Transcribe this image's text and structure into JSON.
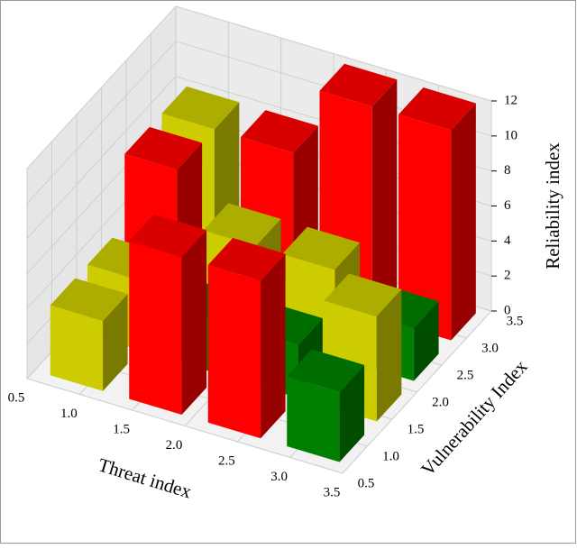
{
  "chart_data": {
    "type": "bar3d",
    "xlabel": "Threat index",
    "ylabel": "Vulnerability Index",
    "zlabel": "Reliability index",
    "xlim": [
      0.5,
      3.5
    ],
    "ylim": [
      0.5,
      3.5
    ],
    "zlim": [
      0,
      12
    ],
    "xticks": [
      0.5,
      {
        "value": 1,
        "label": "1.0"
      },
      1.5,
      {
        "value": 2,
        "label": "2.0"
      },
      2.5,
      {
        "value": 3,
        "label": "3.0"
      },
      3.5
    ],
    "yticks": [
      0.5,
      {
        "value": 1,
        "label": "1.0"
      },
      1.5,
      {
        "value": 2,
        "label": "2.0"
      },
      2.5,
      {
        "value": 3,
        "label": "3.0"
      },
      3.5
    ],
    "zticks": [
      0,
      2,
      4,
      6,
      8,
      10,
      12
    ],
    "grid": true,
    "bar_width": 0.5,
    "bars": {
      "x": [
        0.9,
        1.65,
        2.4,
        3.15,
        0.9,
        1.65,
        2.4,
        3.15,
        0.9,
        1.65,
        2.4,
        3.15,
        0.9,
        1.65,
        2.4,
        3.15
      ],
      "y": [
        0.9,
        0.9,
        0.9,
        0.9,
        1.65,
        1.65,
        1.65,
        1.65,
        2.4,
        2.4,
        2.4,
        2.4,
        3.15,
        3.15,
        3.15,
        3.15
      ],
      "values": [
        4,
        9,
        9,
        4,
        4,
        3,
        3,
        6,
        8,
        5,
        5,
        3,
        8,
        8,
        12,
        12
      ],
      "colors": [
        "#cccc00",
        "#ff0000",
        "#ff0000",
        "#008000",
        "#cccc00",
        "#008000",
        "#008000",
        "#cccc00",
        "#ff0000",
        "#cccc00",
        "#cccc00",
        "#008000",
        "#cccc00",
        "#ff0000",
        "#ff0000",
        "#ff0000"
      ]
    }
  }
}
